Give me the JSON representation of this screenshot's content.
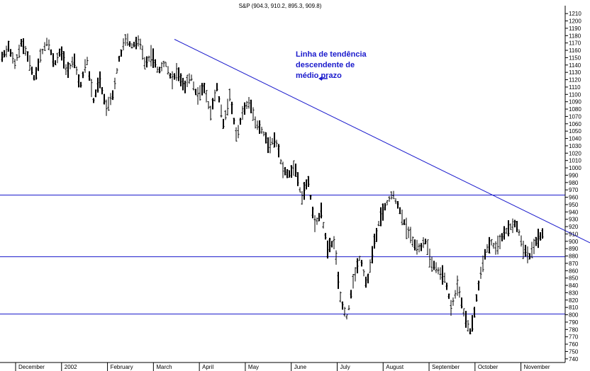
{
  "chart_data": {
    "type": "ohlc",
    "title": "S&P (904.3, 910.2, 895.3, 909.8)",
    "ylim": [
      735,
      1215
    ],
    "y_ticks": [
      740,
      750,
      760,
      770,
      780,
      790,
      800,
      810,
      820,
      830,
      840,
      850,
      860,
      870,
      880,
      890,
      900,
      910,
      920,
      930,
      940,
      950,
      960,
      970,
      980,
      990,
      1000,
      1010,
      1020,
      1030,
      1040,
      1050,
      1060,
      1070,
      1080,
      1090,
      1100,
      1110,
      1120,
      1130,
      1140,
      1150,
      1160,
      1170,
      1180,
      1190,
      1200,
      1210
    ],
    "x_axis_labels": [
      "December",
      "2002",
      "February",
      "March",
      "April",
      "May",
      "June",
      "July",
      "August",
      "September",
      "October",
      "November"
    ],
    "horizontal_lines": [
      963,
      879,
      801
    ],
    "trendline": {
      "start_price": 1175,
      "end_price": 898
    },
    "annotation": {
      "lines": [
        "Linha de tendência",
        "descendente de",
        "médio prazo"
      ]
    },
    "price_waypoints": [
      1150,
      1165,
      1140,
      1172,
      1150,
      1120,
      1155,
      1175,
      1140,
      1160,
      1130,
      1148,
      1110,
      1150,
      1090,
      1120,
      1080,
      1100,
      1150,
      1175,
      1165,
      1175,
      1140,
      1155,
      1130,
      1145,
      1120,
      1130,
      1110,
      1125,
      1095,
      1110,
      1075,
      1110,
      1060,
      1100,
      1040,
      1080,
      1090,
      1060,
      1050,
      1030,
      1040,
      1000,
      990,
      1000,
      960,
      985,
      920,
      940,
      890,
      900,
      820,
      795,
      850,
      880,
      840,
      890,
      930,
      950,
      965,
      945,
      920,
      900,
      890,
      900,
      870,
      860,
      850,
      810,
      840,
      800,
      775,
      830,
      880,
      900,
      890,
      910,
      920,
      925,
      890,
      880,
      900,
      910
    ]
  },
  "colors": {
    "line_blue": "#1a1acc",
    "bar_black": "#000000",
    "grid": "#000000"
  }
}
